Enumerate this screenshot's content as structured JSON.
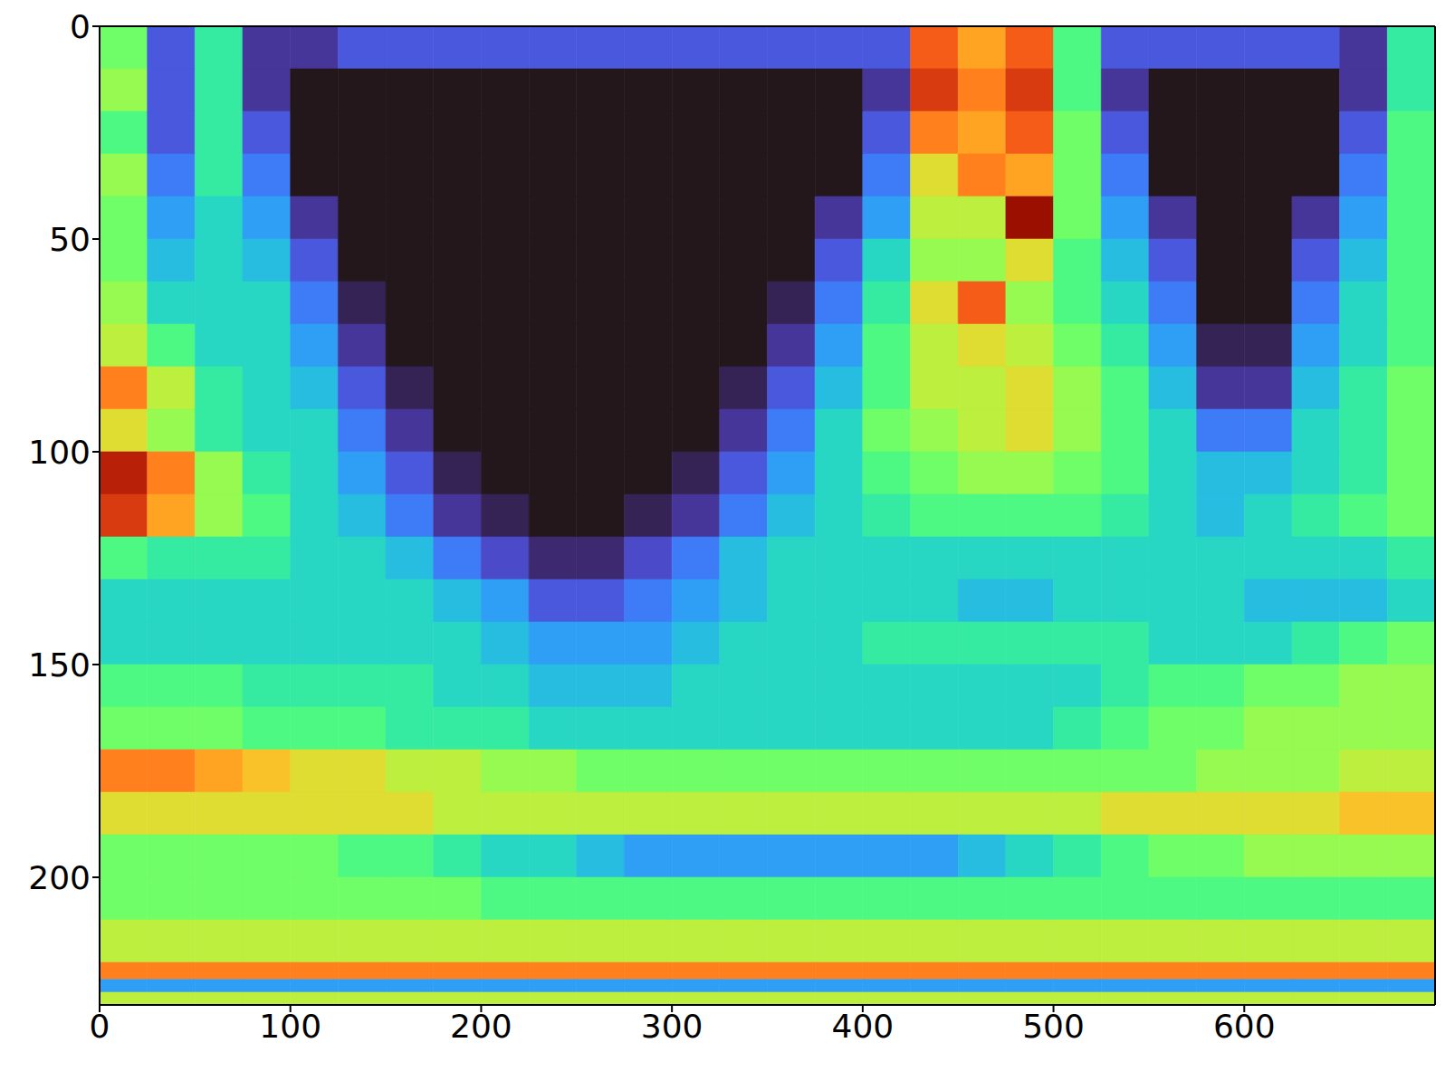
{
  "chart_data": {
    "type": "heatmap",
    "color": "turbo",
    "xlim": [
      0,
      700
    ],
    "ylim": [
      230,
      0
    ],
    "xticks": [
      0,
      100,
      200,
      300,
      400,
      500,
      600
    ],
    "yticks": [
      0,
      50,
      100,
      150,
      200
    ],
    "zlim": [
      0,
      1
    ],
    "x_edges": [
      0,
      25,
      50,
      75,
      100,
      125,
      150,
      175,
      200,
      225,
      250,
      275,
      300,
      325,
      350,
      375,
      400,
      425,
      450,
      475,
      500,
      525,
      550,
      575,
      600,
      625,
      650,
      675,
      700
    ],
    "y_edges": [
      0,
      10,
      20,
      30,
      40,
      50,
      60,
      70,
      80,
      90,
      100,
      110,
      120,
      130,
      140,
      150,
      160,
      170,
      180,
      190,
      200,
      210,
      220,
      224,
      227,
      230
    ],
    "z": [
      [
        0.45,
        0.1,
        0.35,
        0.05,
        0.05,
        0.1,
        0.1,
        0.1,
        0.1,
        0.1,
        0.1,
        0.1,
        0.1,
        0.1,
        0.1,
        0.1,
        0.1,
        0.8,
        0.7,
        0.8,
        0.4,
        0.1,
        0.1,
        0.1,
        0.1,
        0.1,
        0.05,
        0.35
      ],
      [
        0.5,
        0.1,
        0.35,
        0.05,
        0,
        0,
        0,
        0,
        0,
        0,
        0,
        0,
        0,
        0,
        0,
        0,
        0.05,
        0.85,
        0.75,
        0.85,
        0.4,
        0.05,
        0,
        0,
        0,
        0,
        0.05,
        0.35
      ],
      [
        0.4,
        0.1,
        0.35,
        0.1,
        0,
        0,
        0,
        0,
        0,
        0,
        0,
        0,
        0,
        0,
        0,
        0,
        0.1,
        0.75,
        0.7,
        0.8,
        0.45,
        0.1,
        0,
        0,
        0,
        0,
        0.1,
        0.4
      ],
      [
        0.5,
        0.15,
        0.35,
        0.15,
        0,
        0,
        0,
        0,
        0,
        0,
        0,
        0,
        0,
        0,
        0,
        0,
        0.15,
        0.6,
        0.75,
        0.7,
        0.45,
        0.15,
        0,
        0,
        0,
        0,
        0.15,
        0.4
      ],
      [
        0.45,
        0.2,
        0.3,
        0.2,
        0.05,
        0,
        0,
        0,
        0,
        0,
        0,
        0,
        0,
        0,
        0,
        0.05,
        0.2,
        0.55,
        0.55,
        0.95,
        0.45,
        0.2,
        0.05,
        0,
        0,
        0.05,
        0.2,
        0.4
      ],
      [
        0.45,
        0.25,
        0.3,
        0.25,
        0.1,
        0,
        0,
        0,
        0,
        0,
        0,
        0,
        0,
        0,
        0,
        0.1,
        0.3,
        0.5,
        0.5,
        0.6,
        0.4,
        0.25,
        0.1,
        0,
        0,
        0.1,
        0.25,
        0.4
      ],
      [
        0.5,
        0.3,
        0.3,
        0.3,
        0.15,
        0.02,
        0,
        0,
        0,
        0,
        0,
        0,
        0,
        0,
        0.02,
        0.15,
        0.35,
        0.6,
        0.8,
        0.5,
        0.4,
        0.3,
        0.15,
        0,
        0,
        0.15,
        0.3,
        0.4
      ],
      [
        0.55,
        0.4,
        0.3,
        0.3,
        0.2,
        0.05,
        0,
        0,
        0,
        0,
        0,
        0,
        0,
        0,
        0.05,
        0.2,
        0.4,
        0.55,
        0.6,
        0.55,
        0.45,
        0.35,
        0.2,
        0.02,
        0.02,
        0.2,
        0.3,
        0.4
      ],
      [
        0.75,
        0.55,
        0.35,
        0.3,
        0.25,
        0.1,
        0.02,
        0,
        0,
        0,
        0,
        0,
        0,
        0.02,
        0.1,
        0.25,
        0.4,
        0.55,
        0.55,
        0.6,
        0.5,
        0.4,
        0.25,
        0.05,
        0.05,
        0.25,
        0.35,
        0.45
      ],
      [
        0.6,
        0.5,
        0.35,
        0.3,
        0.3,
        0.15,
        0.05,
        0,
        0,
        0,
        0,
        0,
        0,
        0.05,
        0.15,
        0.3,
        0.45,
        0.5,
        0.55,
        0.6,
        0.5,
        0.4,
        0.3,
        0.15,
        0.15,
        0.3,
        0.35,
        0.45
      ],
      [
        0.9,
        0.75,
        0.5,
        0.35,
        0.3,
        0.2,
        0.1,
        0.02,
        0,
        0,
        0,
        0,
        0.02,
        0.1,
        0.2,
        0.3,
        0.4,
        0.45,
        0.5,
        0.5,
        0.45,
        0.4,
        0.3,
        0.25,
        0.25,
        0.3,
        0.35,
        0.45
      ],
      [
        0.85,
        0.7,
        0.5,
        0.4,
        0.3,
        0.25,
        0.15,
        0.05,
        0.02,
        0,
        0,
        0.02,
        0.05,
        0.15,
        0.25,
        0.3,
        0.35,
        0.4,
        0.4,
        0.4,
        0.4,
        0.35,
        0.3,
        0.25,
        0.3,
        0.35,
        0.4,
        0.45
      ],
      [
        0.4,
        0.35,
        0.35,
        0.35,
        0.3,
        0.3,
        0.25,
        0.15,
        0.08,
        0.03,
        0.03,
        0.08,
        0.15,
        0.25,
        0.3,
        0.3,
        0.3,
        0.3,
        0.3,
        0.3,
        0.3,
        0.3,
        0.3,
        0.3,
        0.3,
        0.3,
        0.3,
        0.35
      ],
      [
        0.3,
        0.3,
        0.3,
        0.3,
        0.3,
        0.3,
        0.3,
        0.25,
        0.2,
        0.1,
        0.1,
        0.15,
        0.2,
        0.25,
        0.3,
        0.3,
        0.3,
        0.3,
        0.25,
        0.25,
        0.3,
        0.3,
        0.3,
        0.3,
        0.25,
        0.25,
        0.25,
        0.3
      ],
      [
        0.3,
        0.3,
        0.3,
        0.3,
        0.3,
        0.3,
        0.3,
        0.3,
        0.25,
        0.2,
        0.2,
        0.2,
        0.25,
        0.3,
        0.3,
        0.3,
        0.35,
        0.35,
        0.35,
        0.35,
        0.35,
        0.35,
        0.3,
        0.3,
        0.3,
        0.35,
        0.4,
        0.45
      ],
      [
        0.4,
        0.4,
        0.4,
        0.35,
        0.35,
        0.35,
        0.35,
        0.3,
        0.3,
        0.25,
        0.25,
        0.25,
        0.3,
        0.3,
        0.3,
        0.3,
        0.3,
        0.3,
        0.3,
        0.3,
        0.3,
        0.35,
        0.4,
        0.4,
        0.45,
        0.45,
        0.5,
        0.5
      ],
      [
        0.45,
        0.45,
        0.45,
        0.4,
        0.4,
        0.4,
        0.35,
        0.35,
        0.35,
        0.3,
        0.3,
        0.3,
        0.3,
        0.3,
        0.3,
        0.3,
        0.3,
        0.3,
        0.3,
        0.3,
        0.35,
        0.4,
        0.45,
        0.45,
        0.5,
        0.5,
        0.5,
        0.5
      ],
      [
        0.75,
        0.75,
        0.7,
        0.65,
        0.6,
        0.6,
        0.55,
        0.55,
        0.5,
        0.5,
        0.45,
        0.45,
        0.45,
        0.45,
        0.45,
        0.45,
        0.45,
        0.45,
        0.45,
        0.45,
        0.45,
        0.45,
        0.45,
        0.5,
        0.5,
        0.5,
        0.55,
        0.55
      ],
      [
        0.6,
        0.6,
        0.6,
        0.6,
        0.6,
        0.6,
        0.6,
        0.55,
        0.55,
        0.55,
        0.55,
        0.55,
        0.55,
        0.55,
        0.55,
        0.55,
        0.55,
        0.55,
        0.55,
        0.55,
        0.55,
        0.6,
        0.6,
        0.6,
        0.6,
        0.6,
        0.65,
        0.65
      ],
      [
        0.45,
        0.45,
        0.45,
        0.45,
        0.45,
        0.4,
        0.4,
        0.35,
        0.3,
        0.3,
        0.25,
        0.2,
        0.2,
        0.2,
        0.2,
        0.2,
        0.2,
        0.2,
        0.25,
        0.3,
        0.35,
        0.4,
        0.45,
        0.45,
        0.5,
        0.5,
        0.5,
        0.5
      ],
      [
        0.45,
        0.45,
        0.45,
        0.45,
        0.45,
        0.45,
        0.45,
        0.45,
        0.4,
        0.4,
        0.4,
        0.4,
        0.4,
        0.4,
        0.4,
        0.4,
        0.4,
        0.4,
        0.4,
        0.4,
        0.4,
        0.4,
        0.4,
        0.4,
        0.4,
        0.4,
        0.4,
        0.4
      ],
      [
        0.55,
        0.55,
        0.55,
        0.55,
        0.55,
        0.55,
        0.55,
        0.55,
        0.55,
        0.55,
        0.55,
        0.55,
        0.55,
        0.55,
        0.55,
        0.55,
        0.55,
        0.55,
        0.55,
        0.55,
        0.55,
        0.55,
        0.55,
        0.55,
        0.55,
        0.55,
        0.55,
        0.55
      ],
      [
        0.75,
        0.75,
        0.75,
        0.75,
        0.75,
        0.75,
        0.75,
        0.75,
        0.75,
        0.75,
        0.75,
        0.75,
        0.75,
        0.75,
        0.75,
        0.75,
        0.75,
        0.75,
        0.75,
        0.75,
        0.75,
        0.75,
        0.75,
        0.75,
        0.75,
        0.75,
        0.75,
        0.75
      ],
      [
        0.2,
        0.2,
        0.2,
        0.2,
        0.2,
        0.2,
        0.2,
        0.2,
        0.2,
        0.2,
        0.2,
        0.2,
        0.2,
        0.2,
        0.2,
        0.2,
        0.2,
        0.2,
        0.2,
        0.2,
        0.2,
        0.2,
        0.2,
        0.2,
        0.2,
        0.2,
        0.2,
        0.2
      ],
      [
        0.55,
        0.55,
        0.55,
        0.55,
        0.55,
        0.55,
        0.55,
        0.55,
        0.55,
        0.55,
        0.55,
        0.55,
        0.55,
        0.55,
        0.55,
        0.55,
        0.55,
        0.55,
        0.55,
        0.55,
        0.55,
        0.55,
        0.55,
        0.55,
        0.55,
        0.55,
        0.55,
        0.55
      ]
    ]
  }
}
